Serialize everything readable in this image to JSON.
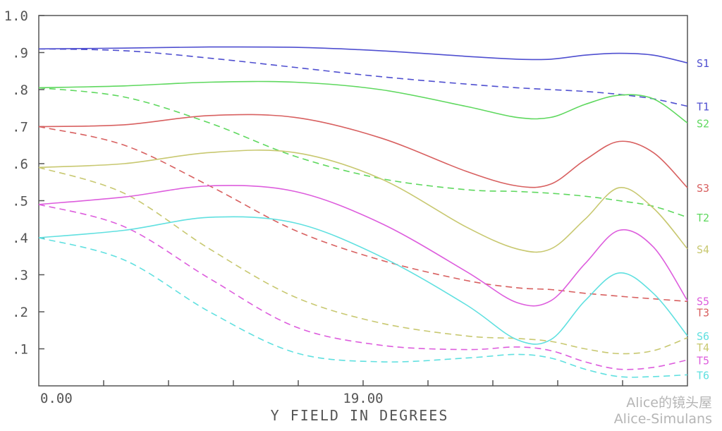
{
  "chart_data": {
    "type": "line",
    "xlabel": "Y FIELD IN DEGREES",
    "ylabel": "",
    "xlim": [
      0,
      38
    ],
    "ylim": [
      0,
      1.0
    ],
    "x_tick_labels": [
      {
        "value": 0,
        "label": "0.00"
      },
      {
        "value": 19,
        "label": "19.00"
      }
    ],
    "x_minor_ticks": [
      3.8,
      7.6,
      11.4,
      15.2,
      19,
      22.8,
      26.6,
      30.4,
      34.2
    ],
    "y_ticks": [
      {
        "value": 0.1,
        "label": ".1"
      },
      {
        "value": 0.2,
        "label": ".2"
      },
      {
        "value": 0.3,
        "label": ".3"
      },
      {
        "value": 0.4,
        "label": ".4"
      },
      {
        "value": 0.5,
        "label": ".5"
      },
      {
        "value": 0.6,
        "label": ".6"
      },
      {
        "value": 0.7,
        "label": ".7"
      },
      {
        "value": 0.8,
        "label": ".8"
      },
      {
        "value": 0.9,
        "label": ".9"
      },
      {
        "value": 1.0,
        "label": "1.0"
      }
    ],
    "grid": false,
    "legend": "right-edge labels",
    "series": [
      {
        "name": "S1",
        "color": "#4f4fd0",
        "dash": false,
        "x": [
          0,
          5,
          10,
          15,
          20,
          25,
          28,
          30,
          32,
          34,
          36,
          38
        ],
        "y": [
          0.91,
          0.912,
          0.915,
          0.914,
          0.905,
          0.89,
          0.882,
          0.882,
          0.893,
          0.898,
          0.893,
          0.872
        ]
      },
      {
        "name": "T1",
        "color": "#4f4fd0",
        "dash": true,
        "x": [
          0,
          5,
          10,
          15,
          20,
          25,
          28,
          30,
          32,
          34,
          36,
          38
        ],
        "y": [
          0.91,
          0.905,
          0.885,
          0.86,
          0.835,
          0.815,
          0.805,
          0.8,
          0.795,
          0.787,
          0.775,
          0.755
        ]
      },
      {
        "name": "S2",
        "color": "#5ed85e",
        "dash": false,
        "x": [
          0,
          5,
          10,
          15,
          20,
          25,
          28,
          30,
          32,
          34,
          36,
          38
        ],
        "y": [
          0.805,
          0.81,
          0.82,
          0.82,
          0.8,
          0.755,
          0.725,
          0.725,
          0.76,
          0.785,
          0.775,
          0.71
        ]
      },
      {
        "name": "T2",
        "color": "#5ed85e",
        "dash": true,
        "x": [
          0,
          5,
          10,
          15,
          20,
          25,
          28,
          30,
          32,
          34,
          36,
          38
        ],
        "y": [
          0.805,
          0.78,
          0.71,
          0.62,
          0.56,
          0.53,
          0.525,
          0.52,
          0.512,
          0.5,
          0.485,
          0.455
        ]
      },
      {
        "name": "S3",
        "color": "#d86060",
        "dash": false,
        "x": [
          0,
          5,
          10,
          15,
          20,
          25,
          28,
          30,
          32,
          34,
          36,
          38
        ],
        "y": [
          0.7,
          0.705,
          0.73,
          0.725,
          0.67,
          0.58,
          0.54,
          0.545,
          0.61,
          0.66,
          0.63,
          0.535
        ]
      },
      {
        "name": "T3",
        "color": "#d86060",
        "dash": true,
        "x": [
          0,
          5,
          10,
          15,
          20,
          25,
          28,
          30,
          32,
          34,
          36,
          38
        ],
        "y": [
          0.7,
          0.65,
          0.54,
          0.42,
          0.34,
          0.285,
          0.265,
          0.26,
          0.25,
          0.242,
          0.235,
          0.228
        ]
      },
      {
        "name": "S4",
        "color": "#c8c870",
        "dash": false,
        "x": [
          0,
          5,
          10,
          15,
          20,
          25,
          28,
          30,
          32,
          34,
          36,
          38
        ],
        "y": [
          0.59,
          0.6,
          0.63,
          0.63,
          0.56,
          0.43,
          0.37,
          0.37,
          0.45,
          0.535,
          0.48,
          0.37
        ]
      },
      {
        "name": "T4",
        "color": "#c8c870",
        "dash": true,
        "x": [
          0,
          5,
          10,
          15,
          20,
          25,
          28,
          30,
          32,
          34,
          36,
          38
        ],
        "y": [
          0.59,
          0.52,
          0.37,
          0.24,
          0.17,
          0.135,
          0.128,
          0.12,
          0.1,
          0.087,
          0.095,
          0.13
        ]
      },
      {
        "name": "S5",
        "color": "#dd5ddd",
        "dash": false,
        "x": [
          0,
          5,
          10,
          15,
          20,
          25,
          28,
          30,
          32,
          34,
          36,
          38
        ],
        "y": [
          0.49,
          0.51,
          0.54,
          0.525,
          0.44,
          0.31,
          0.225,
          0.23,
          0.33,
          0.42,
          0.375,
          0.23
        ]
      },
      {
        "name": "T5",
        "color": "#dd5ddd",
        "dash": true,
        "x": [
          0,
          5,
          10,
          15,
          20,
          25,
          28,
          30,
          32,
          34,
          36,
          38
        ],
        "y": [
          0.49,
          0.43,
          0.29,
          0.16,
          0.11,
          0.098,
          0.105,
          0.095,
          0.065,
          0.045,
          0.05,
          0.07
        ]
      },
      {
        "name": "S6",
        "color": "#60e0e0",
        "dash": false,
        "x": [
          0,
          5,
          10,
          15,
          20,
          25,
          28,
          30,
          32,
          34,
          36,
          38
        ],
        "y": [
          0.4,
          0.42,
          0.455,
          0.44,
          0.35,
          0.22,
          0.125,
          0.125,
          0.23,
          0.305,
          0.25,
          0.135
        ]
      },
      {
        "name": "T6",
        "color": "#60e0e0",
        "dash": true,
        "x": [
          0,
          5,
          10,
          15,
          20,
          25,
          28,
          30,
          32,
          34,
          36,
          38
        ],
        "y": [
          0.4,
          0.34,
          0.2,
          0.09,
          0.065,
          0.075,
          0.085,
          0.075,
          0.045,
          0.025,
          0.025,
          0.03
        ]
      }
    ]
  },
  "watermark": {
    "line1": "Alice的镜头屋",
    "line2": "Alice-Simulans"
  }
}
